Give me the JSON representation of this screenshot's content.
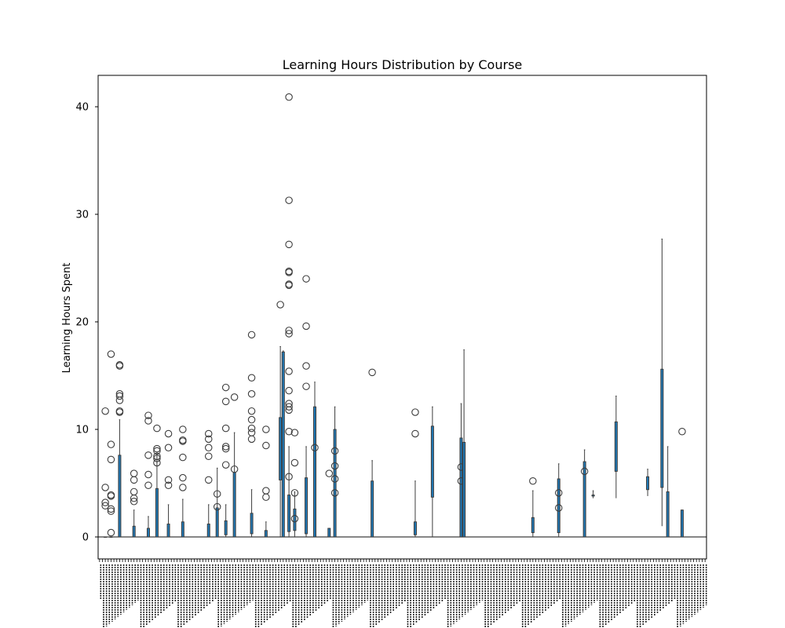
{
  "chart_data": {
    "type": "box",
    "title": "Learning Hours Distribution by Course",
    "xlabel": "",
    "ylabel": "Learning Hours Spent",
    "ylim": [
      -2,
      43
    ],
    "yticks": [
      0,
      10,
      20,
      30,
      40
    ],
    "grid": false,
    "legend": "none",
    "box_color": "#1f77b4",
    "category_count": 150,
    "category_labels_legible": false,
    "boxes": [
      {
        "index": 2,
        "q1": 0,
        "q3": 0,
        "whisker_low": 0,
        "whisker_high": 0,
        "outliers": [
          11.7,
          3.2,
          2.9,
          4.6
        ]
      },
      {
        "index": 4,
        "q1": 0,
        "q3": 0,
        "whisker_low": 0,
        "whisker_high": 0,
        "outliers": [
          17.0,
          8.6,
          7.2,
          3.9,
          3.8,
          2.6,
          2.4,
          0.4
        ]
      },
      {
        "index": 7,
        "q1": 0,
        "q3": 7.6,
        "whisker_low": 0,
        "whisker_high": 10.9,
        "outliers": [
          16.0,
          15.9,
          13.3,
          13.1,
          12.7,
          11.7,
          11.6
        ]
      },
      {
        "index": 12,
        "q1": 0,
        "q3": 1.0,
        "whisker_low": 0,
        "whisker_high": 2.5,
        "outliers": [
          5.9,
          5.3,
          4.2,
          3.6,
          3.3
        ]
      },
      {
        "index": 17,
        "q1": 0,
        "q3": 0.8,
        "whisker_low": 0,
        "whisker_high": 1.9,
        "outliers": [
          11.3,
          10.8,
          7.6,
          5.8,
          4.8
        ]
      },
      {
        "index": 20,
        "q1": 0,
        "q3": 4.5,
        "whisker_low": 0,
        "whisker_high": 7.6,
        "outliers": [
          10.1,
          8.2,
          8.0,
          7.5,
          7.3,
          6.9
        ]
      },
      {
        "index": 24,
        "q1": 0,
        "q3": 1.2,
        "whisker_low": 0,
        "whisker_high": 3.0,
        "outliers": [
          9.6,
          8.3,
          5.3,
          4.8
        ]
      },
      {
        "index": 29,
        "q1": 0,
        "q3": 1.4,
        "whisker_low": 0,
        "whisker_high": 3.5,
        "outliers": [
          10.0,
          9.0,
          8.9,
          7.4,
          5.5,
          4.6
        ]
      },
      {
        "index": 38,
        "q1": 0,
        "q3": 1.2,
        "whisker_low": 0,
        "whisker_high": 3.0,
        "outliers": [
          9.6,
          9.1,
          8.3,
          7.5,
          5.3
        ]
      },
      {
        "index": 41,
        "q1": 0,
        "q3": 2.7,
        "whisker_low": 0,
        "whisker_high": 6.4,
        "outliers": [
          4.0,
          2.8
        ]
      },
      {
        "index": 44,
        "q1": 0.2,
        "q3": 1.5,
        "whisker_low": 0,
        "whisker_high": 3.0,
        "outliers": [
          13.9,
          12.6,
          10.1,
          8.4,
          8.2,
          6.7
        ]
      },
      {
        "index": 47,
        "q1": 0,
        "q3": 6.0,
        "whisker_low": 0,
        "whisker_high": 9.7,
        "outliers": [
          13.0,
          6.3
        ]
      },
      {
        "index": 53,
        "q1": 0.3,
        "q3": 2.2,
        "whisker_low": 0,
        "whisker_high": 4.4,
        "outliers": [
          18.8,
          14.8,
          13.3,
          11.7,
          10.9,
          10.1,
          9.7,
          9.1
        ]
      },
      {
        "index": 58,
        "q1": 0,
        "q3": 0.6,
        "whisker_low": 0,
        "whisker_high": 1.4,
        "outliers": [
          10.0,
          8.5,
          4.3,
          3.7
        ]
      },
      {
        "index": 63,
        "q1": 5.3,
        "q3": 11.1,
        "whisker_low": 0,
        "whisker_high": 17.7,
        "outliers": [
          21.6
        ]
      },
      {
        "index": 64,
        "q1": 0,
        "q3": 17.2,
        "whisker_low": 0,
        "whisker_high": 17.3,
        "outliers": []
      },
      {
        "index": 66,
        "q1": 0.5,
        "q3": 3.9,
        "whisker_low": 0,
        "whisker_high": 8.4,
        "outliers": [
          40.9,
          31.3,
          27.2,
          24.7,
          24.6,
          23.5,
          23.4,
          19.2,
          18.9,
          15.4,
          13.6,
          12.4,
          12.1,
          11.8,
          9.8,
          5.6
        ]
      },
      {
        "index": 68,
        "q1": 0.6,
        "q3": 2.6,
        "whisker_low": 0,
        "whisker_high": 4.2,
        "outliers": [
          9.7,
          6.9,
          4.1,
          1.7
        ]
      },
      {
        "index": 72,
        "q1": 0.3,
        "q3": 5.5,
        "whisker_low": 0,
        "whisker_high": 8.4,
        "outliers": [
          24.0,
          19.6,
          15.9,
          14.0
        ]
      },
      {
        "index": 75,
        "q1": 0,
        "q3": 12.1,
        "whisker_low": 0,
        "whisker_high": 14.4,
        "outliers": [
          8.3
        ]
      },
      {
        "index": 80,
        "q1": 0,
        "q3": 0.8,
        "whisker_low": 0,
        "whisker_high": 0.8,
        "outliers": [
          5.9
        ]
      },
      {
        "index": 82,
        "q1": 0,
        "q3": 10.0,
        "whisker_low": 0,
        "whisker_high": 12.1,
        "outliers": [
          8.0,
          6.6,
          5.4,
          4.1
        ]
      },
      {
        "index": 95,
        "q1": 0,
        "q3": 5.2,
        "whisker_low": 0,
        "whisker_high": 7.1,
        "outliers": [
          15.3
        ]
      },
      {
        "index": 110,
        "q1": 0.2,
        "q3": 1.4,
        "whisker_low": 0,
        "whisker_high": 5.2,
        "outliers": [
          11.6,
          9.6
        ]
      },
      {
        "index": 116,
        "q1": 3.7,
        "q3": 10.3,
        "whisker_low": 0,
        "whisker_high": 12.1,
        "outliers": []
      },
      {
        "index": 126,
        "q1": 0,
        "q3": 9.2,
        "whisker_low": 0,
        "whisker_high": 12.4,
        "outliers": [
          6.5,
          5.2
        ]
      },
      {
        "index": 127,
        "q1": 0,
        "q3": 8.8,
        "whisker_low": 0,
        "whisker_high": 17.4,
        "outliers": []
      },
      {
        "index": 151,
        "q1": 0.4,
        "q3": 1.8,
        "whisker_low": 0,
        "whisker_high": 4.3,
        "outliers": [
          5.2
        ]
      },
      {
        "index": 160,
        "q1": 0.4,
        "q3": 5.4,
        "whisker_low": 0,
        "whisker_high": 6.8,
        "outliers": [
          4.1,
          2.7
        ]
      },
      {
        "index": 169,
        "q1": 0,
        "q3": 7.0,
        "whisker_low": 0,
        "whisker_high": 8.1,
        "outliers": [
          6.1
        ]
      },
      {
        "index": 172,
        "q1": 3.8,
        "q3": 3.9,
        "whisker_low": 3.6,
        "whisker_high": 4.3,
        "outliers": []
      },
      {
        "index": 180,
        "q1": 6.1,
        "q3": 10.7,
        "whisker_low": 3.6,
        "whisker_high": 13.1,
        "outliers": []
      },
      {
        "index": 191,
        "q1": 4.4,
        "q3": 5.6,
        "whisker_low": 3.8,
        "whisker_high": 6.3,
        "outliers": []
      },
      {
        "index": 196,
        "q1": 4.6,
        "q3": 15.6,
        "whisker_low": 1.0,
        "whisker_high": 27.7,
        "outliers": []
      },
      {
        "index": 198,
        "q1": 0,
        "q3": 4.2,
        "whisker_low": 0,
        "whisker_high": 8.4,
        "outliers": []
      },
      {
        "index": 203,
        "q1": 0,
        "q3": 2.5,
        "whisker_low": 0,
        "whisker_high": 2.5,
        "outliers": [
          9.8
        ]
      }
    ]
  }
}
